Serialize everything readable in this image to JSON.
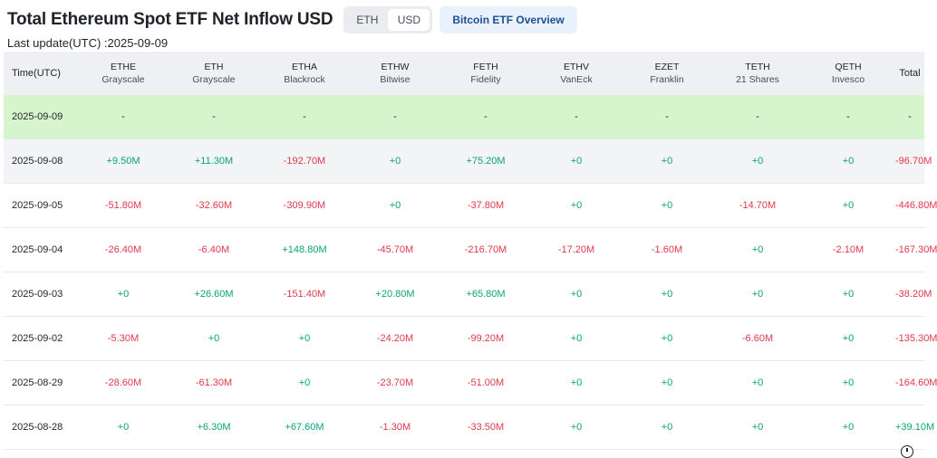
{
  "header": {
    "title": "Total Ethereum Spot ETF Net Inflow USD",
    "toggle": [
      "ETH",
      "USD"
    ],
    "overview_button": "Bitcoin ETF Overview",
    "last_update": "Last update(UTC) :2025-09-09"
  },
  "table": {
    "time_label": "Time(UTC)",
    "total_label": "Total",
    "columns": [
      {
        "ticker": "ETHE",
        "issuer": "Grayscale"
      },
      {
        "ticker": "ETH",
        "issuer": "Grayscale"
      },
      {
        "ticker": "ETHA",
        "issuer": "Blackrock"
      },
      {
        "ticker": "ETHW",
        "issuer": "Bitwise"
      },
      {
        "ticker": "FETH",
        "issuer": "Fidelity"
      },
      {
        "ticker": "ETHV",
        "issuer": "VanEck"
      },
      {
        "ticker": "EZET",
        "issuer": "Franklin"
      },
      {
        "ticker": "TETH",
        "issuer": "21 Shares"
      },
      {
        "ticker": "QETH",
        "issuer": "Invesco"
      }
    ],
    "rows": [
      {
        "date": "2025-09-09",
        "values": [
          "-",
          "-",
          "-",
          "-",
          "-",
          "-",
          "-",
          "-",
          "-"
        ],
        "total": "-"
      },
      {
        "date": "2025-09-08",
        "values": [
          "+9.50M",
          "+11.30M",
          "-192.70M",
          "+0",
          "+75.20M",
          "+0",
          "+0",
          "+0",
          "+0"
        ],
        "total": "-96.70M"
      },
      {
        "date": "2025-09-05",
        "values": [
          "-51.80M",
          "-32.60M",
          "-309.90M",
          "+0",
          "-37.80M",
          "+0",
          "+0",
          "-14.70M",
          "+0"
        ],
        "total": "-446.80M"
      },
      {
        "date": "2025-09-04",
        "values": [
          "-26.40M",
          "-6.40M",
          "+148.80M",
          "-45.70M",
          "-216.70M",
          "-17.20M",
          "-1.60M",
          "+0",
          "-2.10M"
        ],
        "total": "-167.30M"
      },
      {
        "date": "2025-09-03",
        "values": [
          "+0",
          "+26.60M",
          "-151.40M",
          "+20.80M",
          "+65.80M",
          "+0",
          "+0",
          "+0",
          "+0"
        ],
        "total": "-38.20M"
      },
      {
        "date": "2025-09-02",
        "values": [
          "-5.30M",
          "+0",
          "+0",
          "-24.20M",
          "-99.20M",
          "+0",
          "+0",
          "-6.60M",
          "+0"
        ],
        "total": "-135.30M"
      },
      {
        "date": "2025-08-29",
        "values": [
          "-28.60M",
          "-61.30M",
          "+0",
          "-23.70M",
          "-51.00M",
          "+0",
          "+0",
          "+0",
          "+0"
        ],
        "total": "-164.60M"
      },
      {
        "date": "2025-08-28",
        "values": [
          "+0",
          "+6.30M",
          "+67.60M",
          "-1.30M",
          "-33.50M",
          "+0",
          "+0",
          "+0",
          "+0"
        ],
        "total": "+39.10M"
      }
    ]
  },
  "colors": {
    "positive": "#0ba374",
    "negative": "#e0384b",
    "highlight_row": "#d6f5cc"
  },
  "icons": {
    "settings": "settings-icon"
  }
}
